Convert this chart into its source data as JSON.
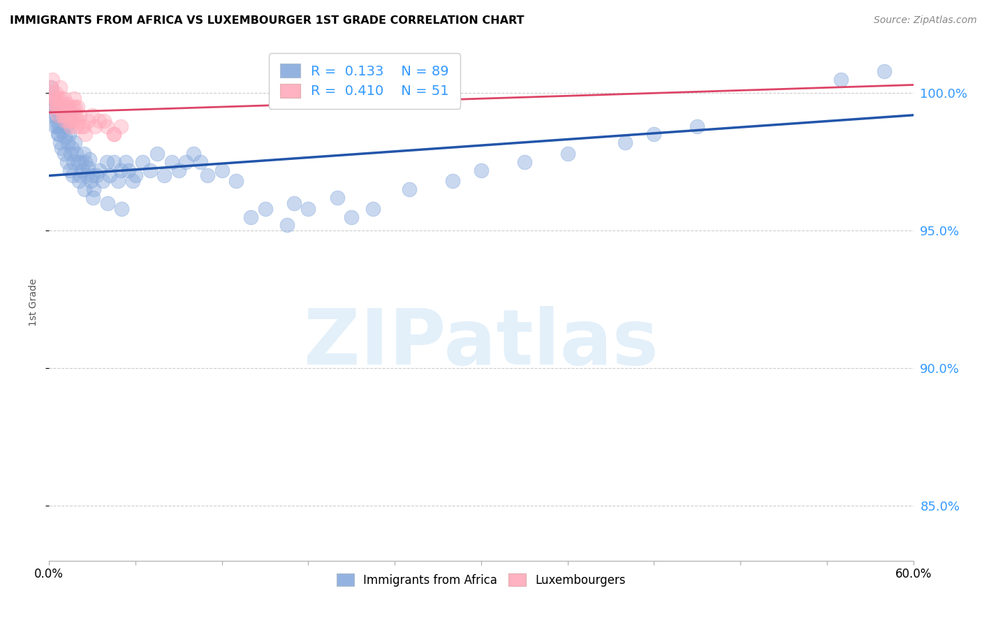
{
  "title": "IMMIGRANTS FROM AFRICA VS LUXEMBOURGER 1ST GRADE CORRELATION CHART",
  "source": "Source: ZipAtlas.com",
  "ylabel": "1st Grade",
  "xlim": [
    0.0,
    60.0
  ],
  "ylim": [
    83.0,
    101.8
  ],
  "yticks": [
    85.0,
    90.0,
    95.0,
    100.0
  ],
  "ytick_labels": [
    "85.0%",
    "90.0%",
    "95.0%",
    "100.0%"
  ],
  "xtick_labels_show": [
    "0.0%",
    "60.0%"
  ],
  "xticks_show": [
    0.0,
    60.0
  ],
  "xticks_minor": [
    6.0,
    12.0,
    18.0,
    24.0,
    30.0,
    36.0,
    42.0,
    48.0,
    54.0
  ],
  "blue_color": "#88aadd",
  "pink_color": "#ffaabb",
  "blue_line_color": "#2255aa",
  "pink_line_color": "#dd4466",
  "legend_R_blue": "0.133",
  "legend_N_blue": "89",
  "legend_R_pink": "0.410",
  "legend_N_pink": "51",
  "legend_label_blue": "Immigrants from Africa",
  "legend_label_pink": "Luxembourgers",
  "watermark": "ZIPatlas",
  "blue_x": [
    0.2,
    0.3,
    0.4,
    0.5,
    0.6,
    0.7,
    0.8,
    0.9,
    1.0,
    1.1,
    1.2,
    1.3,
    1.4,
    1.5,
    1.6,
    1.7,
    1.8,
    1.9,
    2.0,
    2.1,
    2.2,
    2.3,
    2.4,
    2.5,
    2.6,
    2.7,
    2.8,
    2.9,
    3.0,
    3.1,
    3.3,
    3.5,
    3.7,
    4.0,
    4.2,
    4.5,
    4.8,
    5.0,
    5.3,
    5.5,
    5.8,
    6.0,
    6.5,
    7.0,
    7.5,
    8.0,
    8.5,
    9.0,
    9.5,
    10.0,
    10.5,
    11.0,
    12.0,
    13.0,
    14.0,
    15.0,
    16.5,
    17.0,
    18.0,
    20.0,
    21.0,
    22.5,
    25.0,
    28.0,
    30.0,
    33.0,
    36.0,
    40.0,
    42.0,
    45.0,
    55.0,
    0.15,
    0.25,
    0.35,
    0.45,
    0.55,
    0.65,
    0.75,
    0.85,
    1.05,
    1.25,
    1.45,
    1.65,
    2.05,
    2.45,
    3.05,
    4.05,
    5.05,
    58.0
  ],
  "blue_y": [
    99.5,
    99.2,
    98.8,
    99.0,
    98.5,
    98.8,
    99.2,
    98.6,
    99.0,
    98.4,
    98.8,
    98.2,
    98.5,
    97.8,
    98.0,
    97.5,
    98.2,
    97.8,
    97.5,
    97.0,
    97.5,
    97.2,
    97.8,
    97.5,
    97.0,
    97.3,
    97.6,
    96.8,
    97.0,
    96.5,
    97.0,
    97.2,
    96.8,
    97.5,
    97.0,
    97.5,
    96.8,
    97.2,
    97.5,
    97.2,
    96.8,
    97.0,
    97.5,
    97.2,
    97.8,
    97.0,
    97.5,
    97.2,
    97.5,
    97.8,
    97.5,
    97.0,
    97.2,
    96.8,
    95.5,
    95.8,
    95.2,
    96.0,
    95.8,
    96.2,
    95.5,
    95.8,
    96.5,
    96.8,
    97.2,
    97.5,
    97.8,
    98.2,
    98.5,
    98.8,
    100.5,
    100.2,
    99.8,
    99.5,
    99.2,
    98.8,
    98.5,
    98.2,
    98.0,
    97.8,
    97.5,
    97.2,
    97.0,
    96.8,
    96.5,
    96.2,
    96.0,
    95.8,
    100.8
  ],
  "pink_x": [
    0.15,
    0.25,
    0.35,
    0.45,
    0.55,
    0.65,
    0.75,
    0.85,
    0.95,
    1.05,
    1.15,
    1.25,
    1.35,
    1.45,
    1.55,
    1.65,
    1.75,
    1.85,
    1.95,
    2.1,
    2.4,
    2.7,
    3.0,
    3.5,
    4.0,
    4.5,
    0.2,
    0.3,
    0.4,
    0.5,
    0.6,
    0.7,
    0.8,
    0.9,
    1.0,
    1.1,
    1.2,
    1.3,
    1.4,
    1.5,
    1.6,
    1.7,
    1.8,
    1.9,
    2.0,
    2.2,
    2.5,
    3.2,
    3.8,
    4.5,
    5.0
  ],
  "pink_y": [
    100.2,
    100.5,
    99.8,
    100.0,
    99.5,
    99.8,
    100.2,
    99.6,
    99.2,
    99.8,
    99.4,
    99.6,
    99.0,
    99.4,
    99.2,
    99.5,
    99.8,
    99.2,
    99.5,
    99.2,
    98.8,
    99.0,
    99.2,
    99.0,
    98.8,
    98.5,
    99.5,
    100.0,
    99.8,
    99.5,
    99.2,
    99.5,
    99.8,
    99.5,
    99.2,
    99.0,
    99.2,
    99.5,
    99.2,
    98.8,
    99.0,
    99.2,
    99.5,
    98.8,
    99.0,
    98.8,
    98.5,
    98.8,
    99.0,
    98.5,
    98.8
  ]
}
